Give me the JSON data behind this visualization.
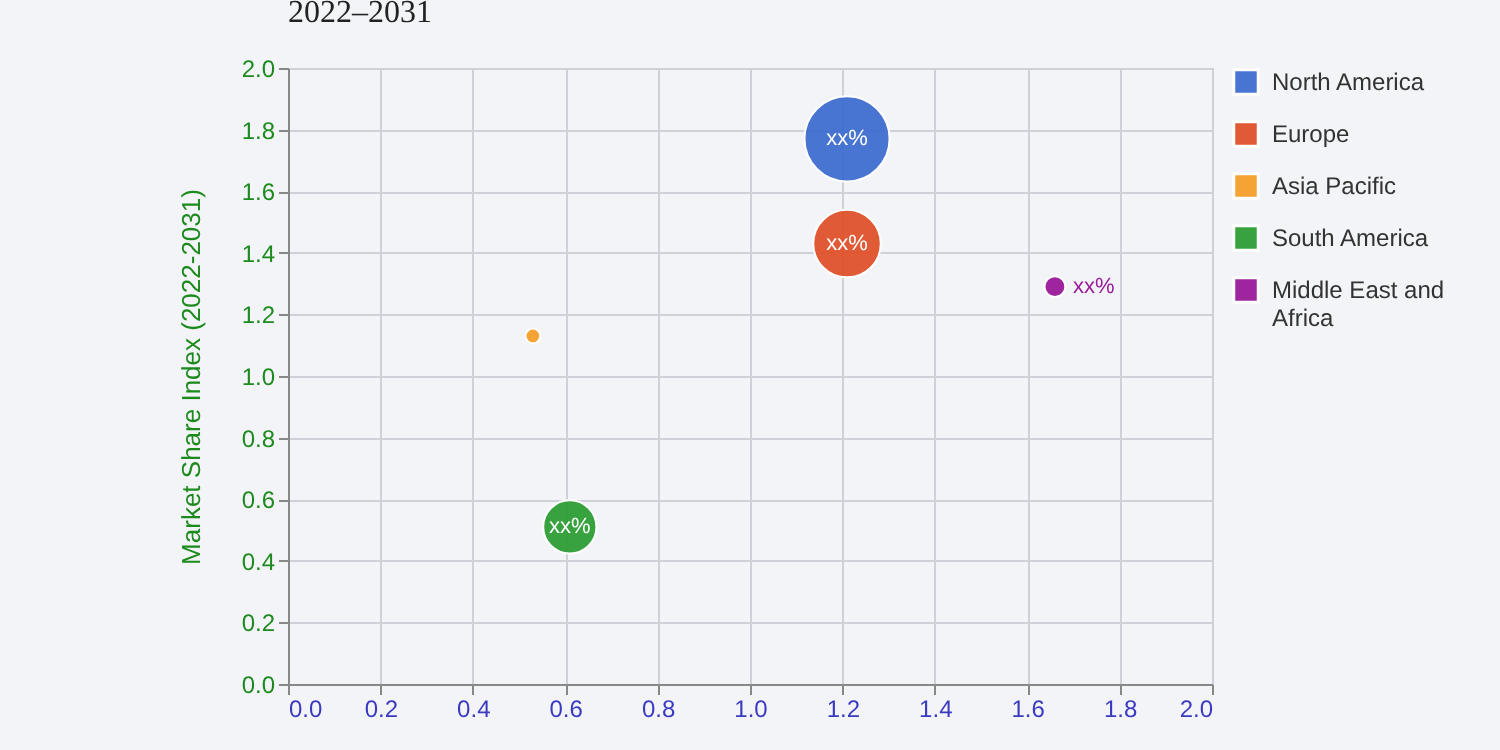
{
  "chart_data": {
    "type": "bubble",
    "title": "2022–2031",
    "ylabel": "Market Share Index (2022-2031)",
    "xlim": [
      0,
      2
    ],
    "xticks": [
      {
        "value": 0,
        "label": "0.0"
      },
      0.2,
      0.4,
      0.6,
      0.8,
      {
        "value": 1,
        "label": "1.0"
      },
      1.2,
      1.4,
      1.6,
      1.8,
      {
        "value": 2,
        "label": "2.0"
      }
    ],
    "ylim": [
      0,
      2
    ],
    "yticks": [
      {
        "value": 0,
        "label": "0.0"
      },
      0.2,
      0.4,
      0.6,
      0.8,
      {
        "value": 1,
        "label": "1.0"
      },
      1.2,
      1.4,
      1.6,
      1.8,
      {
        "value": 2,
        "label": "2.0"
      }
    ],
    "grid": true,
    "legend": "top right",
    "marker": "circle",
    "series": [
      {
        "name": "North America",
        "color": "#3f6fd1",
        "x": [
          1.21
        ],
        "values": [
          1.77
        ],
        "sizes": [
          1
        ],
        "value_labels": [
          "xx%"
        ]
      },
      {
        "name": "Europe",
        "color": "#e0522b",
        "x": [
          1.21
        ],
        "values": [
          1.43
        ],
        "sizes": [
          0.63
        ],
        "value_labels": [
          "xx%"
        ]
      },
      {
        "name": "Asia Pacific",
        "color": "#f5a02a",
        "x": [
          0.53
        ],
        "values": [
          1.13
        ],
        "sizes": [
          0.03
        ],
        "value_labels": [
          null
        ]
      },
      {
        "name": "South America",
        "color": "#2e9e36",
        "x": [
          0.61
        ],
        "values": [
          0.51
        ],
        "sizes": [
          0.39
        ],
        "value_labels": [
          "xx%"
        ]
      },
      {
        "name": "Middle East and Africa",
        "color": "#9a1a9a",
        "x": [
          1.66
        ],
        "values": [
          1.29
        ],
        "sizes": [
          0.06
        ],
        "value_labels": [
          "xx%"
        ]
      }
    ]
  }
}
